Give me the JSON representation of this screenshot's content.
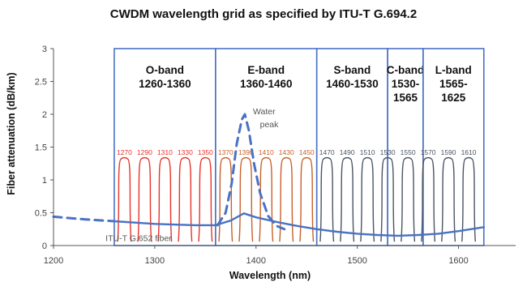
{
  "chart_data": {
    "type": "line",
    "title": "CWDM wavelength grid as specified by ITU-T G.694.2",
    "xlabel": "Wavelength (nm)",
    "ylabel": "Fiber attenuation (dB/km)",
    "xlim": [
      1200,
      1650
    ],
    "ylim": [
      0,
      3
    ],
    "xticks": [
      "1200",
      "1300",
      "1400",
      "1500",
      "1600"
    ],
    "yticks": [
      "0",
      "0.5",
      "1",
      "1.5",
      "2",
      "2.5",
      "3"
    ],
    "grid": false,
    "bands": [
      {
        "name": "O-band",
        "range": "1260-1360",
        "start": 1260,
        "end": 1360
      },
      {
        "name": "E-band",
        "range": "1360-1460",
        "start": 1360,
        "end": 1460
      },
      {
        "name": "S-band",
        "range": "1460-1530",
        "start": 1460,
        "end": 1530
      },
      {
        "name": "C-band",
        "range": "1530-\n1565",
        "start": 1530,
        "end": 1565
      },
      {
        "name": "L-band",
        "range": "1565-\n1625",
        "start": 1565,
        "end": 1625
      }
    ],
    "channels": [
      {
        "label": "1270",
        "x": 1270,
        "color": "#e8332a"
      },
      {
        "label": "1290",
        "x": 1290,
        "color": "#e8332a"
      },
      {
        "label": "1310",
        "x": 1310,
        "color": "#e8332a"
      },
      {
        "label": "1330",
        "x": 1330,
        "color": "#e8332a"
      },
      {
        "label": "1350",
        "x": 1350,
        "color": "#e8332a"
      },
      {
        "label": "1370",
        "x": 1370,
        "color": "#c8602a"
      },
      {
        "label": "1390",
        "x": 1390,
        "color": "#c8602a"
      },
      {
        "label": "1410",
        "x": 1410,
        "color": "#c8602a"
      },
      {
        "label": "1430",
        "x": 1430,
        "color": "#c8602a"
      },
      {
        "label": "1450",
        "x": 1450,
        "color": "#c8602a"
      },
      {
        "label": "1470",
        "x": 1470,
        "color": "#4b5563"
      },
      {
        "label": "1490",
        "x": 1490,
        "color": "#4b5563"
      },
      {
        "label": "1510",
        "x": 1510,
        "color": "#4b5563"
      },
      {
        "label": "1530",
        "x": 1530,
        "color": "#4b5563"
      },
      {
        "label": "1550",
        "x": 1550,
        "color": "#4b5563"
      },
      {
        "label": "1570",
        "x": 1570,
        "color": "#4b5563"
      },
      {
        "label": "1590",
        "x": 1590,
        "color": "#4b5563"
      },
      {
        "label": "1610",
        "x": 1610,
        "color": "#4b5563"
      }
    ],
    "channel_top": 1.32,
    "series": [
      {
        "name": "ITU-T G.652 fiber",
        "x": [
          1260,
          1300,
          1340,
          1360,
          1375,
          1388,
          1400,
          1420,
          1440,
          1460,
          1480,
          1500,
          1520,
          1540,
          1560,
          1580,
          1600,
          1625
        ],
        "y": [
          0.37,
          0.33,
          0.31,
          0.31,
          0.38,
          0.49,
          0.43,
          0.36,
          0.3,
          0.25,
          0.21,
          0.18,
          0.16,
          0.15,
          0.16,
          0.18,
          0.22,
          0.28
        ]
      },
      {
        "name": "",
        "style": "dashed",
        "x": [
          1200,
          1230,
          1260
        ],
        "y": [
          0.44,
          0.4,
          0.37
        ]
      },
      {
        "name": "",
        "style": "dashed",
        "x": [
          1362,
          1370,
          1376,
          1381,
          1386,
          1389,
          1393,
          1398,
          1404,
          1412,
          1420,
          1428
        ],
        "y": [
          0.31,
          0.5,
          0.95,
          1.55,
          1.92,
          2.0,
          1.75,
          1.25,
          0.8,
          0.45,
          0.3,
          0.25
        ]
      }
    ],
    "annotations": [
      {
        "text": "Water",
        "x": 1408,
        "y": 2.0
      },
      {
        "text": "peak",
        "x": 1413,
        "y": 1.8
      },
      {
        "text": "ITU-T G.652 fiber",
        "x": 1284,
        "y": 0.07
      }
    ],
    "colors": {
      "band_border": "#4a72c4",
      "fiber_curve": "#4a72c4",
      "axis": "#555555"
    }
  }
}
